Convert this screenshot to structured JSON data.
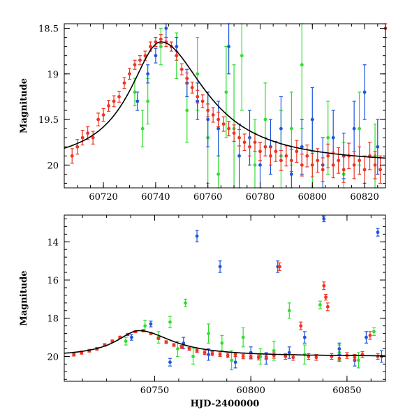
{
  "chart_data": [
    {
      "type": "scatter",
      "title": "",
      "xlabel": "",
      "ylabel": "Magnitude",
      "xlim": [
        60705,
        60828
      ],
      "ylim": [
        20.25,
        18.45
      ],
      "y_inverted": true,
      "xticks": [
        60720,
        60740,
        60760,
        60780,
        60800,
        60820
      ],
      "yticks": [
        18.5,
        19,
        19.5,
        20
      ],
      "ytick_labels": [
        "18.5",
        "19",
        "19.5",
        "20"
      ],
      "series": [
        {
          "color": "#33dd33",
          "points": [
            [
              60732,
              19.2,
              0.15
            ],
            [
              60735,
              19.6,
              0.2
            ],
            [
              60737,
              19.3,
              0.25
            ],
            [
              60742,
              18.7,
              0.2
            ],
            [
              60748,
              18.8,
              0.25
            ],
            [
              60752,
              19.4,
              0.35
            ],
            [
              60756,
              19.0,
              0.4
            ],
            [
              60760,
              19.7,
              0.5
            ],
            [
              60764,
              20.1,
              0.6
            ],
            [
              60767,
              19.2,
              0.5
            ],
            [
              60770,
              19.6,
              0.7
            ],
            [
              60773,
              18.8,
              0.6
            ],
            [
              60778,
              20.0,
              0.5
            ],
            [
              60782,
              19.5,
              0.4
            ],
            [
              60788,
              19.9,
              0.5
            ],
            [
              60792,
              19.6,
              0.4
            ],
            [
              60796,
              18.9,
              0.7
            ],
            [
              60800,
              20.0,
              0.5
            ],
            [
              60806,
              19.7,
              0.4
            ],
            [
              60812,
              20.1,
              0.35
            ],
            [
              60818,
              19.6,
              0.4
            ],
            [
              60824,
              19.9,
              0.35
            ]
          ]
        },
        {
          "color": "#1e55dd",
          "points": [
            [
              60733,
              19.3,
              0.1
            ],
            [
              60737,
              19.0,
              0.1
            ],
            [
              60740,
              18.8,
              0.08
            ],
            [
              60744,
              18.5,
              0.1
            ],
            [
              60748,
              18.7,
              0.1
            ],
            [
              60752,
              19.1,
              0.15
            ],
            [
              60756,
              19.3,
              0.2
            ],
            [
              60760,
              19.5,
              0.3
            ],
            [
              60764,
              19.6,
              0.3
            ],
            [
              60768,
              18.7,
              0.3
            ],
            [
              60772,
              19.9,
              0.35
            ],
            [
              60776,
              19.7,
              0.3
            ],
            [
              60780,
              20.0,
              0.25
            ],
            [
              60784,
              19.8,
              0.3
            ],
            [
              60788,
              19.6,
              0.35
            ],
            [
              60792,
              20.1,
              0.3
            ],
            [
              60796,
              19.8,
              0.3
            ],
            [
              60800,
              19.5,
              0.35
            ],
            [
              60804,
              20.0,
              0.3
            ],
            [
              60808,
              19.7,
              0.3
            ],
            [
              60812,
              19.9,
              0.25
            ],
            [
              60816,
              19.6,
              0.3
            ],
            [
              60820,
              19.2,
              0.3
            ],
            [
              60825,
              19.8,
              0.3
            ]
          ]
        },
        {
          "color": "#ee3322",
          "points": [
            [
              60708,
              19.9,
              0.08
            ],
            [
              60710,
              19.8,
              0.08
            ],
            [
              60712,
              19.7,
              0.08
            ],
            [
              60714,
              19.65,
              0.07
            ],
            [
              60716,
              19.7,
              0.07
            ],
            [
              60718,
              19.5,
              0.07
            ],
            [
              60720,
              19.45,
              0.07
            ],
            [
              60722,
              19.35,
              0.06
            ],
            [
              60724,
              19.3,
              0.06
            ],
            [
              60726,
              19.25,
              0.06
            ],
            [
              60728,
              19.1,
              0.06
            ],
            [
              60730,
              19.0,
              0.06
            ],
            [
              60732,
              18.9,
              0.05
            ],
            [
              60734,
              18.85,
              0.05
            ],
            [
              60736,
              18.8,
              0.05
            ],
            [
              60738,
              18.7,
              0.05
            ],
            [
              60740,
              18.65,
              0.05
            ],
            [
              60742,
              18.62,
              0.05
            ],
            [
              60744,
              18.65,
              0.05
            ],
            [
              60746,
              18.7,
              0.05
            ],
            [
              60748,
              18.8,
              0.05
            ],
            [
              60750,
              18.95,
              0.06
            ],
            [
              60752,
              19.05,
              0.06
            ],
            [
              60754,
              19.15,
              0.06
            ],
            [
              60756,
              19.25,
              0.07
            ],
            [
              60758,
              19.3,
              0.07
            ],
            [
              60760,
              19.4,
              0.07
            ],
            [
              60762,
              19.45,
              0.08
            ],
            [
              60764,
              19.5,
              0.08
            ],
            [
              60766,
              19.55,
              0.08
            ],
            [
              60768,
              19.6,
              0.08
            ],
            [
              60770,
              19.65,
              0.09
            ],
            [
              60772,
              19.7,
              0.09
            ],
            [
              60774,
              19.75,
              0.09
            ],
            [
              60776,
              19.8,
              0.1
            ],
            [
              60778,
              19.75,
              0.1
            ],
            [
              60780,
              19.85,
              0.1
            ],
            [
              60782,
              19.8,
              0.1
            ],
            [
              60784,
              19.9,
              0.1
            ],
            [
              60786,
              19.85,
              0.11
            ],
            [
              60788,
              19.95,
              0.11
            ],
            [
              60790,
              19.9,
              0.11
            ],
            [
              60792,
              19.95,
              0.12
            ],
            [
              60794,
              19.85,
              0.12
            ],
            [
              60796,
              20.0,
              0.12
            ],
            [
              60798,
              19.9,
              0.12
            ],
            [
              60800,
              20.0,
              0.13
            ],
            [
              60802,
              19.95,
              0.13
            ],
            [
              60804,
              20.05,
              0.13
            ],
            [
              60806,
              19.9,
              0.13
            ],
            [
              60808,
              20.0,
              0.14
            ],
            [
              60810,
              19.95,
              0.14
            ],
            [
              60812,
              20.05,
              0.14
            ],
            [
              60814,
              19.9,
              0.14
            ],
            [
              60816,
              20.0,
              0.15
            ],
            [
              60818,
              19.95,
              0.15
            ],
            [
              60820,
              20.05,
              0.15
            ],
            [
              60822,
              19.9,
              0.15
            ],
            [
              60824,
              20.0,
              0.15
            ],
            [
              60826,
              20.05,
              0.15
            ],
            [
              60828,
              18.5,
              0.1
            ]
          ]
        }
      ],
      "model_curve": {
        "color": "#000000",
        "peak_x": 60742,
        "peak_mag": 18.65,
        "baseline_mag": 20.0,
        "rise_width": 14,
        "fall_width": 20
      }
    },
    {
      "type": "scatter",
      "title": "",
      "xlabel": "HJD-2400000",
      "ylabel": "Magnitude",
      "xlim": [
        60703,
        60870
      ],
      "ylim": [
        21.3,
        12.6
      ],
      "y_inverted": true,
      "xticks": [
        60750,
        60800,
        60850
      ],
      "yticks": [
        14,
        16,
        18,
        20
      ],
      "ytick_labels": [
        "14",
        "16",
        "18",
        "20"
      ],
      "series": [
        {
          "color": "#33dd33",
          "points": [
            [
              60735,
              19.2,
              0.2
            ],
            [
              60745,
              18.4,
              0.3
            ],
            [
              60752,
              19.0,
              0.3
            ],
            [
              60758,
              18.2,
              0.3
            ],
            [
              60762,
              19.6,
              0.4
            ],
            [
              60766,
              17.2,
              0.2
            ],
            [
              60770,
              20.0,
              0.4
            ],
            [
              60778,
              18.8,
              0.5
            ],
            [
              60785,
              19.3,
              0.4
            ],
            [
              60790,
              20.2,
              0.5
            ],
            [
              60796,
              19.0,
              0.5
            ],
            [
              60805,
              20.0,
              0.4
            ],
            [
              60812,
              19.7,
              0.5
            ],
            [
              60820,
              17.6,
              0.4
            ],
            [
              60828,
              19.9,
              0.5
            ],
            [
              60836,
              17.3,
              0.2
            ],
            [
              60846,
              19.8,
              0.4
            ],
            [
              60856,
              20.2,
              0.4
            ],
            [
              60864,
              18.7,
              0.2
            ]
          ]
        },
        {
          "color": "#1e55dd",
          "points": [
            [
              60738,
              19.0,
              0.15
            ],
            [
              60748,
              18.3,
              0.15
            ],
            [
              60758,
              20.3,
              0.2
            ],
            [
              60765,
              19.3,
              0.3
            ],
            [
              60772,
              13.7,
              0.3
            ],
            [
              60778,
              19.9,
              0.3
            ],
            [
              60784,
              15.3,
              0.3
            ],
            [
              60792,
              20.3,
              0.3
            ],
            [
              60800,
              19.8,
              0.3
            ],
            [
              60808,
              20.1,
              0.3
            ],
            [
              60814,
              15.3,
              0.3
            ],
            [
              60820,
              19.8,
              0.3
            ],
            [
              60828,
              19.0,
              0.3
            ],
            [
              60838,
              12.8,
              0.15
            ],
            [
              60846,
              19.6,
              0.3
            ],
            [
              60854,
              20.2,
              0.3
            ],
            [
              60860,
              19.0,
              0.3
            ],
            [
              60866,
              13.5,
              0.2
            ],
            [
              60868,
              20.0,
              0.3
            ]
          ]
        },
        {
          "color": "#ee3322",
          "points": [
            [
              60708,
              19.9,
              0.08
            ],
            [
              60712,
              19.8,
              0.08
            ],
            [
              60716,
              19.7,
              0.07
            ],
            [
              60720,
              19.6,
              0.07
            ],
            [
              60724,
              19.4,
              0.07
            ],
            [
              60728,
              19.2,
              0.06
            ],
            [
              60732,
              19.0,
              0.06
            ],
            [
              60736,
              18.85,
              0.05
            ],
            [
              60740,
              18.7,
              0.05
            ],
            [
              60744,
              18.65,
              0.05
            ],
            [
              60748,
              18.8,
              0.05
            ],
            [
              60752,
              19.05,
              0.06
            ],
            [
              60756,
              19.25,
              0.07
            ],
            [
              60760,
              19.4,
              0.07
            ],
            [
              60764,
              19.5,
              0.08
            ],
            [
              60768,
              19.6,
              0.08
            ],
            [
              60772,
              19.7,
              0.09
            ],
            [
              60776,
              19.8,
              0.1
            ],
            [
              60780,
              19.85,
              0.1
            ],
            [
              60784,
              19.9,
              0.1
            ],
            [
              60788,
              19.95,
              0.11
            ],
            [
              60792,
              19.9,
              0.11
            ],
            [
              60796,
              20.0,
              0.12
            ],
            [
              60800,
              20.0,
              0.13
            ],
            [
              60804,
              20.05,
              0.13
            ],
            [
              60808,
              20.0,
              0.14
            ],
            [
              60812,
              19.95,
              0.14
            ],
            [
              60815,
              15.3,
              0.2
            ],
            [
              60818,
              20.0,
              0.15
            ],
            [
              60822,
              20.05,
              0.15
            ],
            [
              60826,
              18.4,
              0.2
            ],
            [
              60830,
              20.0,
              0.15
            ],
            [
              60834,
              20.05,
              0.15
            ],
            [
              60838,
              16.3,
              0.2
            ],
            [
              60839,
              16.9,
              0.15
            ],
            [
              60840,
              17.4,
              0.2
            ],
            [
              60842,
              20.0,
              0.15
            ],
            [
              60846,
              20.1,
              0.15
            ],
            [
              60850,
              19.95,
              0.15
            ],
            [
              60854,
              20.05,
              0.15
            ],
            [
              60858,
              19.9,
              0.15
            ],
            [
              60862,
              18.9,
              0.2
            ],
            [
              60866,
              20.0,
              0.15
            ]
          ]
        }
      ],
      "model_curve": {
        "color": "#000000",
        "peak_x": 60742,
        "peak_mag": 18.65,
        "baseline_mag": 20.0,
        "rise_width": 14,
        "fall_width": 20
      }
    }
  ]
}
